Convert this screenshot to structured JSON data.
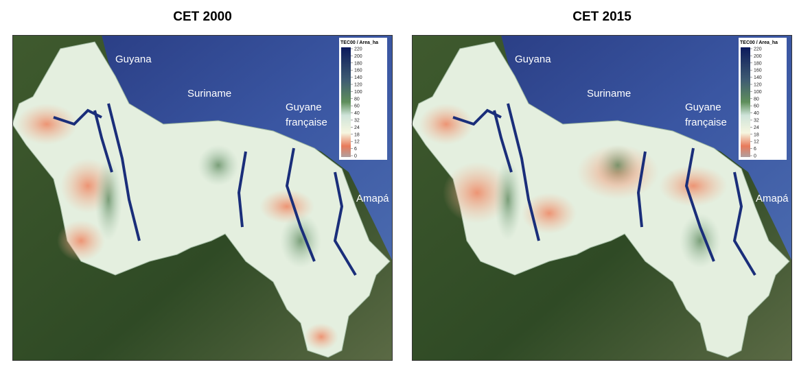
{
  "panels": [
    {
      "title": "CET 2000",
      "labels": [
        {
          "lines": [
            "Guyana"
          ]
        },
        {
          "lines": [
            "Suriname"
          ]
        },
        {
          "lines": [
            "Guyane",
            "française"
          ]
        },
        {
          "lines": [
            "Amapá"
          ]
        }
      ],
      "legend": {
        "title": "TEC00 / Area_ha",
        "ticks": [
          220,
          200,
          180,
          160,
          140,
          120,
          100,
          80,
          60,
          40,
          32,
          24,
          18,
          12,
          6,
          0
        ]
      }
    },
    {
      "title": "CET 2015",
      "labels": [
        {
          "lines": [
            "Guyana"
          ]
        },
        {
          "lines": [
            "Suriname"
          ]
        },
        {
          "lines": [
            "Guyane",
            "française"
          ]
        },
        {
          "lines": [
            "Amapá"
          ]
        }
      ],
      "legend": {
        "title": "TEC00 / Area_ha",
        "ticks": [
          220,
          200,
          180,
          160,
          140,
          120,
          100,
          80,
          60,
          40,
          32,
          24,
          18,
          12,
          6,
          0
        ]
      }
    }
  ]
}
